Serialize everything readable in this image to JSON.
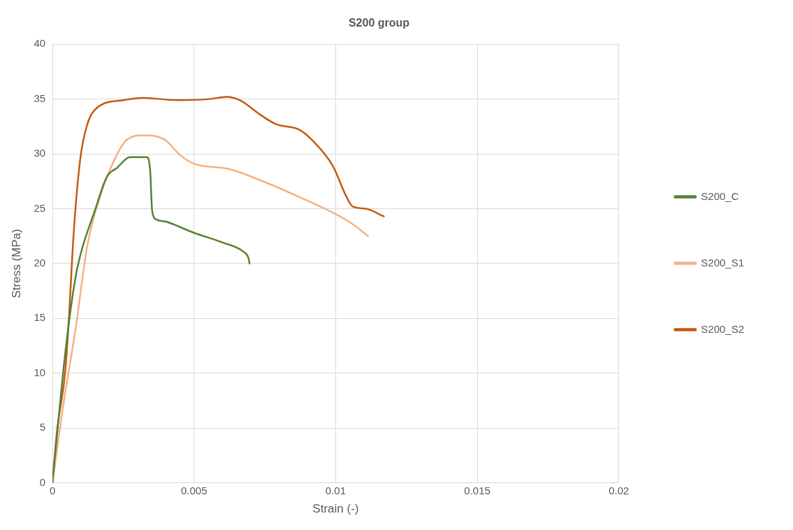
{
  "chart_data": {
    "type": "line",
    "title": "S200 group",
    "xlabel": "Strain (-)",
    "ylabel": "Stress (MPa)",
    "xlim": [
      0,
      0.02
    ],
    "xticks": [
      0,
      0.005,
      0.01,
      0.015,
      0.02
    ],
    "ylim": [
      0,
      40
    ],
    "yticks": [
      0,
      5,
      10,
      15,
      20,
      25,
      30,
      35,
      40
    ],
    "grid": true,
    "legend": "right",
    "marker": "none",
    "line_style": "solid",
    "series": [
      {
        "name": "S200_C",
        "color": "#548235",
        "x": [
          0,
          0.00035,
          0.00059,
          0.00087,
          0.00152,
          0.00192,
          0.00227,
          0.00274,
          0.00333,
          0.00345,
          0.00352,
          0.00368,
          0.00403,
          0.005,
          0.00603,
          0.00673,
          0.00692,
          0.00696
        ],
        "values": [
          0,
          9.4,
          14.8,
          19.5,
          25,
          27.9,
          28.7,
          29.7,
          29.7,
          28.5,
          24.8,
          24,
          23.8,
          22.8,
          21.9,
          21.1,
          20.5,
          20
        ]
      },
      {
        "name": "S200_S1",
        "color": "#f4b183",
        "x": [
          0,
          0.0004,
          0.00082,
          0.00122,
          0.00169,
          0.00227,
          0.00263,
          0.00321,
          0.00396,
          0.0045,
          0.005,
          0.00626,
          0.00743,
          0.0086,
          0.01001,
          0.0106,
          0.01114
        ],
        "values": [
          0,
          7.4,
          14.1,
          21.5,
          26.2,
          29.9,
          31.3,
          31.7,
          31.3,
          29.9,
          29.1,
          28.6,
          27.5,
          26.2,
          24.5,
          23.6,
          22.5
        ]
      },
      {
        "name": "S200_S2",
        "color": "#c55a11",
        "x": [
          0,
          0.00016,
          0.00045,
          0.00056,
          0.00059,
          0.00075,
          0.00098,
          0.00122,
          0.00157,
          0.00251,
          0.00321,
          0.00438,
          0.00556,
          0.00614,
          0.00661,
          0.00732,
          0.0079,
          0.00872,
          0.00919,
          0.0099,
          0.01036,
          0.0106,
          0.01107,
          0.0117
        ],
        "values": [
          0,
          4.7,
          10.1,
          14.1,
          15.4,
          22.8,
          29.5,
          32.6,
          34.2,
          34.9,
          35.1,
          34.9,
          35,
          35.2,
          34.9,
          33.6,
          32.7,
          32.2,
          31.2,
          28.9,
          26.2,
          25.2,
          25,
          24.3
        ]
      }
    ]
  }
}
